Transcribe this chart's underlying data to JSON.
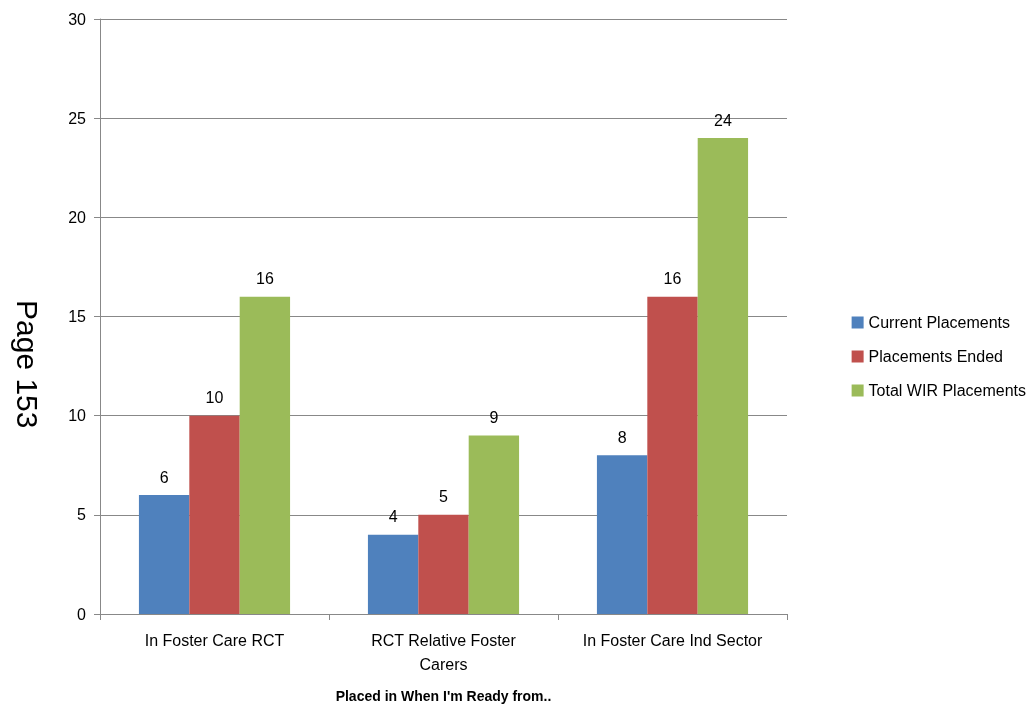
{
  "chart_data": {
    "type": "bar",
    "xlabel": "Placed in When I'm Ready from..",
    "categories": [
      "In Foster Care RCT",
      "RCT Relative Foster\nCarers",
      "In Foster Care Ind Sector"
    ],
    "series": [
      {
        "name": "Current Placements",
        "color": "#4f81bd",
        "values": [
          6,
          4,
          8
        ]
      },
      {
        "name": "Placements Ended",
        "color": "#c0504d",
        "values": [
          10,
          5,
          16
        ]
      },
      {
        "name": "Total WIR Placements",
        "color": "#9bbb59",
        "values": [
          16,
          9,
          24
        ]
      }
    ],
    "ylim": [
      0,
      30
    ],
    "yticks": [
      0,
      5,
      10,
      15,
      20,
      25,
      30
    ],
    "grid": "y",
    "legend": "right",
    "data_labels": true,
    "annotations": [
      "Page 153"
    ]
  }
}
